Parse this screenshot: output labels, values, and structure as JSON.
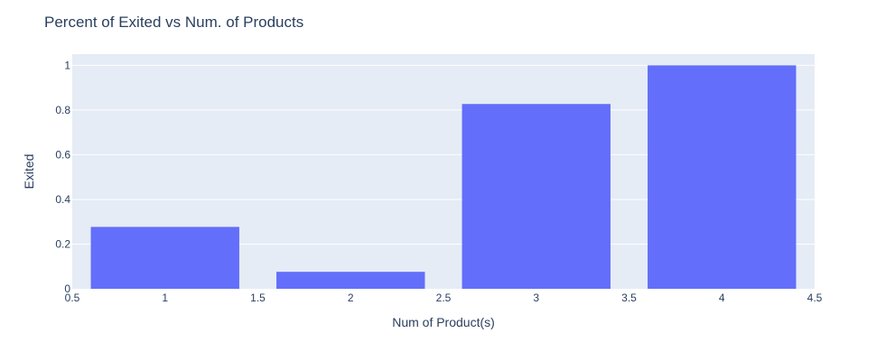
{
  "colors": {
    "plot_background": "#e5ecf6",
    "bar": "#636efa",
    "grid": "#ffffff",
    "text": "#2a3f5f"
  },
  "chart_data": {
    "type": "bar",
    "title": "Percent of Exited vs Num. of Products",
    "xlabel": "Num of Product(s)",
    "ylabel": "Exited",
    "x": [
      1,
      2,
      3,
      4
    ],
    "values": [
      0.277,
      0.076,
      0.827,
      1.0
    ],
    "bar_width": 0.8,
    "xlim": [
      0.5,
      4.5
    ],
    "ylim": [
      0,
      1.05
    ],
    "x_ticks": [
      {
        "value": 0.5,
        "label": "0.5"
      },
      {
        "value": 1,
        "label": "1"
      },
      {
        "value": 1.5,
        "label": "1.5"
      },
      {
        "value": 2,
        "label": "2"
      },
      {
        "value": 2.5,
        "label": "2.5"
      },
      {
        "value": 3,
        "label": "3"
      },
      {
        "value": 3.5,
        "label": "3.5"
      },
      {
        "value": 4,
        "label": "4"
      },
      {
        "value": 4.5,
        "label": "4.5"
      }
    ],
    "y_ticks": [
      {
        "value": 0,
        "label": "0"
      },
      {
        "value": 0.2,
        "label": "0.2"
      },
      {
        "value": 0.4,
        "label": "0.4"
      },
      {
        "value": 0.6,
        "label": "0.6"
      },
      {
        "value": 0.8,
        "label": "0.8"
      },
      {
        "value": 1,
        "label": "1"
      }
    ],
    "grid": true
  }
}
